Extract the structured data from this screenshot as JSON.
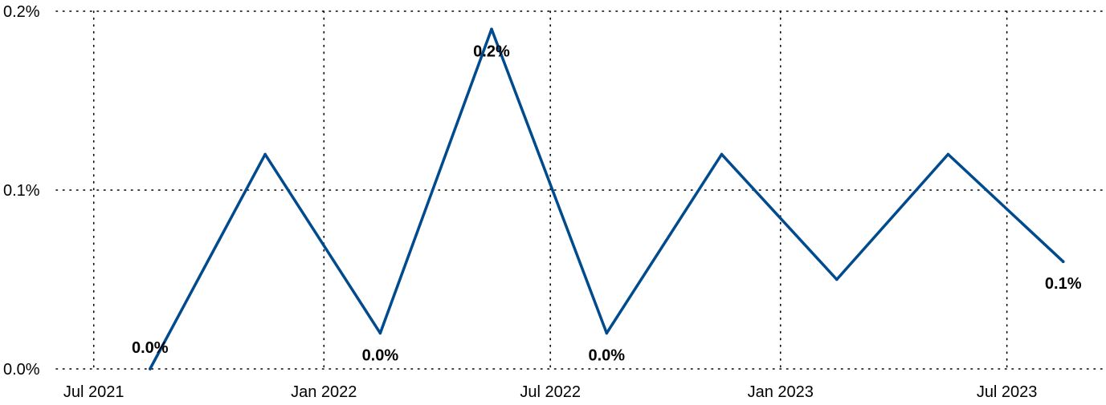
{
  "chart_data": {
    "type": "line",
    "title": "",
    "xlabel": "",
    "ylabel": "",
    "x": [
      "2021-08",
      "2021-11",
      "2022-02",
      "2022-05",
      "2022-08",
      "2022-11",
      "2023-02",
      "2023-05",
      "2023-08"
    ],
    "series": [
      {
        "values": [
          0.0,
          0.12,
          0.02,
          0.19,
          0.02,
          0.12,
          0.05,
          0.12,
          0.06
        ]
      }
    ],
    "data_labels": [
      {
        "index": 0,
        "text": "0.0%",
        "position": "above-right"
      },
      {
        "index": 2,
        "text": "0.0%",
        "position": "below"
      },
      {
        "index": 3,
        "text": "0.2%",
        "position": "below"
      },
      {
        "index": 4,
        "text": "0.0%",
        "position": "below"
      },
      {
        "index": 8,
        "text": "0.1%",
        "position": "below"
      }
    ],
    "ylim": [
      0,
      0.2
    ],
    "yticks": [
      0,
      0.1,
      0.2
    ],
    "ytick_labels": [
      "0.0%",
      "0.1%",
      "0.2%"
    ],
    "xlim": [
      "2021-06-01",
      "2023-09-15"
    ],
    "xticks": [
      "2021-07-01",
      "2022-01-01",
      "2022-07-01",
      "2023-01-01",
      "2023-07-01"
    ],
    "xtick_labels": [
      "Jul 2021",
      "Jan 2022",
      "Jul 2022",
      "Jan 2023",
      "Jul 2023"
    ],
    "grid": true,
    "line_color": "#004b8d"
  }
}
